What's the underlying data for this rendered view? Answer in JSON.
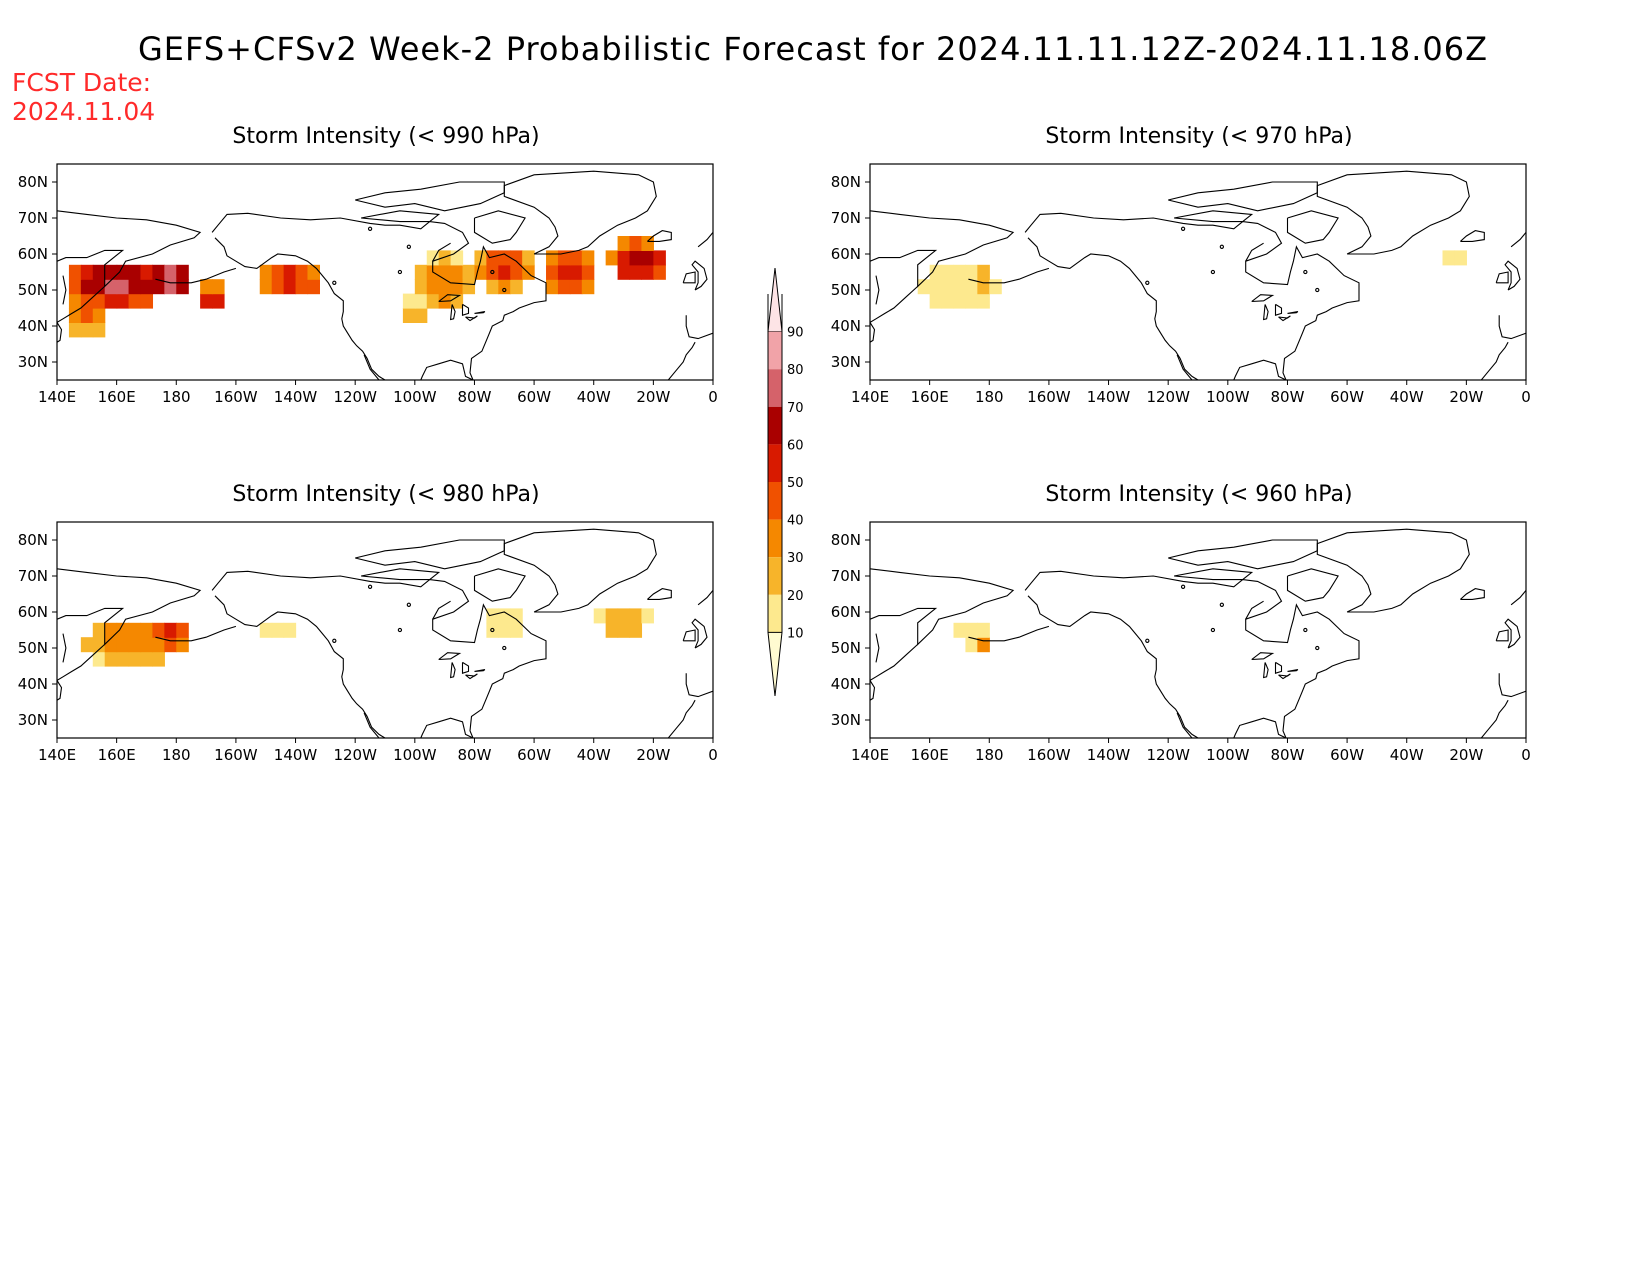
{
  "title": "GEFS+CFSv2 Week-2 Probabilistic Forecast for 2024.11.11.12Z-2024.11.18.06Z",
  "forecast_date": {
    "label": "FCST Date:",
    "value": "2024.11.04"
  },
  "axes": {
    "lon_ticks": [
      "140E",
      "160E",
      "180",
      "160W",
      "140W",
      "120W",
      "100W",
      "80W",
      "60W",
      "40W",
      "20W",
      "0"
    ],
    "lat_ticks": [
      "80N",
      "70N",
      "60N",
      "50N",
      "40N",
      "30N"
    ]
  },
  "colorbar": {
    "levels": [
      "10",
      "20",
      "30",
      "40",
      "50",
      "60",
      "70",
      "80",
      "90"
    ],
    "colors": [
      "#fffbd1",
      "#fde98e",
      "#f7b42a",
      "#f58800",
      "#f05100",
      "#d81a00",
      "#a90000",
      "#d5626a",
      "#f1a3a8",
      "#fde4e6"
    ]
  },
  "panels": [
    {
      "id": "p990",
      "title": "Storm Intensity (< 990 hPa)",
      "threshold_hPa": 990
    },
    {
      "id": "p970",
      "title": "Storm Intensity (< 970 hPa)",
      "threshold_hPa": 970
    },
    {
      "id": "p980",
      "title": "Storm Intensity (< 980 hPa)",
      "threshold_hPa": 980
    },
    {
      "id": "p960",
      "title": "Storm Intensity (< 960 hPa)",
      "threshold_hPa": 960
    }
  ],
  "chart_data": {
    "type": "heatmap",
    "value_units": "probability (%)",
    "lon_range": [
      "140E",
      "0"
    ],
    "lat_range": [
      "25N",
      "85N"
    ],
    "regions": {
      "p990": [
        {
          "lon": 160,
          "lat": 52,
          "rx": 18,
          "ry": 7,
          "p": 75
        },
        {
          "lon": 150,
          "lat": 44,
          "rx": 8,
          "ry": 6,
          "p": 45
        },
        {
          "lon": 178,
          "lat": 53,
          "rx": 8,
          "ry": 5,
          "p": 80
        },
        {
          "lon": 192,
          "lat": 48,
          "rx": 5,
          "ry": 4,
          "p": 60
        },
        {
          "lon": 218,
          "lat": 53,
          "rx": 10,
          "ry": 5,
          "p": 55
        },
        {
          "lon": 226,
          "lat": 50,
          "rx": 4,
          "ry": 3,
          "p": 45
        },
        {
          "lon": 270,
          "lat": 52,
          "rx": 10,
          "ry": 8,
          "p": 40
        },
        {
          "lon": 290,
          "lat": 56,
          "rx": 10,
          "ry": 6,
          "p": 55
        },
        {
          "lon": 312,
          "lat": 55,
          "rx": 10,
          "ry": 6,
          "p": 60
        },
        {
          "lon": 335,
          "lat": 58,
          "rx": 10,
          "ry": 6,
          "p": 70
        },
        {
          "lon": 260,
          "lat": 44,
          "rx": 6,
          "ry": 4,
          "p": 25
        }
      ],
      "p970": [
        {
          "lon": 170,
          "lat": 52,
          "rx": 14,
          "ry": 7,
          "p": 20
        },
        {
          "lon": 177,
          "lat": 53,
          "rx": 4,
          "ry": 3,
          "p": 40
        },
        {
          "lon": 335,
          "lat": 60,
          "rx": 4,
          "ry": 3,
          "p": 20
        }
      ],
      "p980": [
        {
          "lon": 165,
          "lat": 52,
          "rx": 16,
          "ry": 7,
          "p": 40
        },
        {
          "lon": 177,
          "lat": 54,
          "rx": 8,
          "ry": 5,
          "p": 55
        },
        {
          "lon": 215,
          "lat": 55,
          "rx": 6,
          "ry": 3,
          "p": 20
        },
        {
          "lon": 290,
          "lat": 56,
          "rx": 10,
          "ry": 5,
          "p": 15
        },
        {
          "lon": 330,
          "lat": 58,
          "rx": 10,
          "ry": 5,
          "p": 30
        }
      ],
      "p960": [
        {
          "lon": 175,
          "lat": 54,
          "rx": 7,
          "ry": 4,
          "p": 20
        },
        {
          "lon": 179,
          "lat": 52,
          "rx": 3,
          "ry": 2,
          "p": 40
        }
      ]
    }
  }
}
